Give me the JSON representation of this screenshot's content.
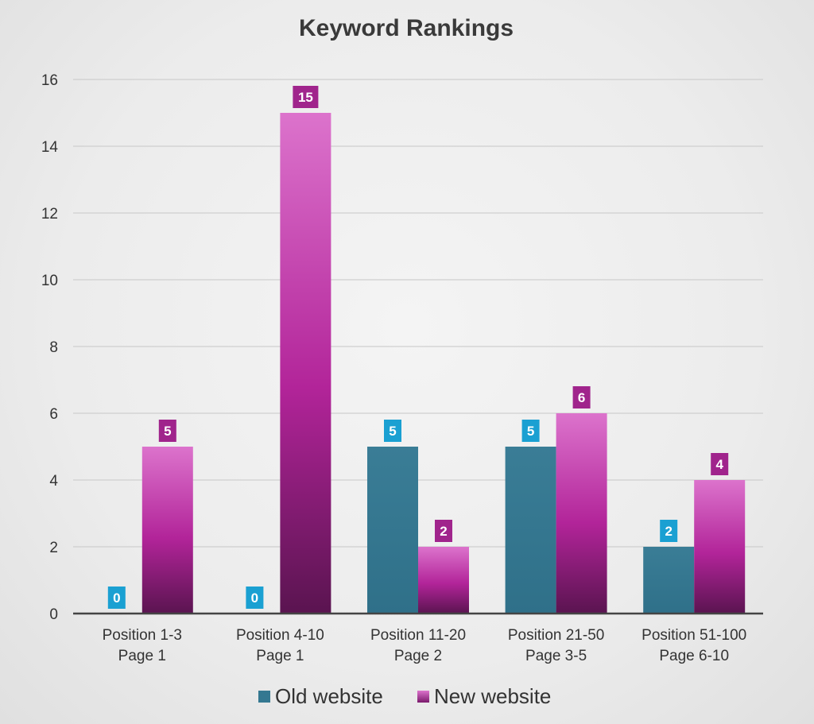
{
  "chart_data": {
    "type": "bar",
    "title": "Keyword Rankings",
    "xlabel": "",
    "ylabel": "",
    "ylim": [
      0,
      16
    ],
    "yticks": [
      0,
      2,
      4,
      6,
      8,
      10,
      12,
      14,
      16
    ],
    "categories": [
      [
        "Position 1-3",
        "Page 1"
      ],
      [
        "Position 4-10",
        "Page 1"
      ],
      [
        "Position 11-20",
        "Page 2"
      ],
      [
        "Position 21-50",
        "Page 3-5"
      ],
      [
        "Position 51-100",
        "Page 6-10"
      ]
    ],
    "series": [
      {
        "name": "Old website",
        "values": [
          0,
          0,
          5,
          5,
          2
        ],
        "color": "#347891",
        "label_color": "#1aa0d2"
      },
      {
        "name": "New website",
        "values": [
          5,
          15,
          2,
          6,
          4
        ],
        "color": "#b5259e",
        "label_color": "#a0248c"
      }
    ],
    "grid": true,
    "legend": "bottom",
    "data_labels": true
  }
}
